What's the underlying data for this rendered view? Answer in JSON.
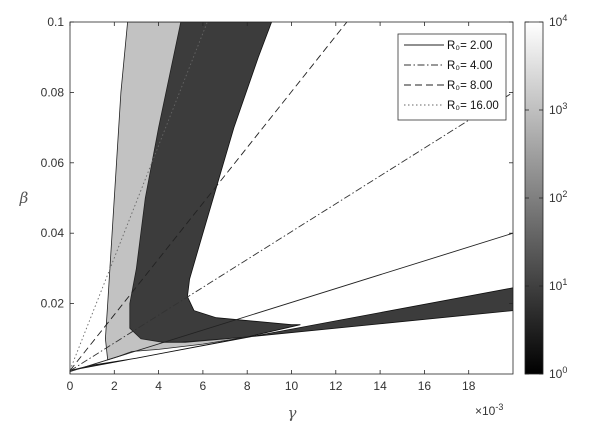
{
  "chart_data": {
    "type": "area",
    "xlabel": "γ",
    "ylabel": "β",
    "x_exponent_label": "×10",
    "x_exponent_power": "-3",
    "xlim": [
      0,
      0.02
    ],
    "ylim": [
      0,
      0.1
    ],
    "x_ticks": [
      0,
      0.002,
      0.004,
      0.006,
      0.008,
      0.01,
      0.012,
      0.014,
      0.016,
      0.018
    ],
    "x_tick_labels": [
      "0",
      "2",
      "4",
      "6",
      "8",
      "10",
      "12",
      "14",
      "16",
      "18"
    ],
    "y_ticks": [
      0.02,
      0.04,
      0.06,
      0.08,
      0.1
    ],
    "y_tick_labels": [
      "0.02",
      "0.04",
      "0.06",
      "0.08",
      "0.1"
    ],
    "grid": false,
    "legend_position": "top-right",
    "lines": [
      {
        "label": "R₀= 2.00",
        "R0": 2.0,
        "style": "solid",
        "color": "#222222",
        "x": [
          0,
          0.02
        ],
        "y": [
          0.00068,
          0.04
        ]
      },
      {
        "label": "R₀= 4.00",
        "R0": 4.0,
        "style": "dashdot",
        "color": "#333333",
        "x": [
          0,
          0.02
        ],
        "y": [
          0.0009,
          0.08
        ]
      },
      {
        "label": "R₀= 8.00",
        "R0": 8.0,
        "style": "dashed",
        "color": "#222222",
        "x": [
          0,
          0.0125
        ],
        "y": [
          0.001,
          0.1
        ]
      },
      {
        "label": "R₀= 16.00",
        "R0": 16.0,
        "style": "dotted",
        "color": "#666666",
        "x": [
          0,
          0.0062
        ],
        "y": [
          0.0011,
          0.1
        ]
      }
    ],
    "regions": [
      {
        "fill": "#3c3c3c",
        "outline": "#111111",
        "boundary": [
          [
            0.0,
            0.001
          ],
          [
            0.02,
            0.0245
          ],
          [
            0.02,
            0.018
          ],
          [
            0.008,
            0.0105
          ],
          [
            0.003,
            0.0045
          ],
          [
            0.001,
            0.0025
          ],
          [
            0.0,
            0.001
          ]
        ]
      },
      {
        "fill": "#3c3c3c",
        "outline": "#111111",
        "boundary": [
          [
            0.0045,
            0.1
          ],
          [
            0.0091,
            0.1
          ],
          [
            0.0085,
            0.09
          ],
          [
            0.0074,
            0.07
          ],
          [
            0.006,
            0.04
          ],
          [
            0.0054,
            0.027
          ],
          [
            0.0053,
            0.022
          ],
          [
            0.0056,
            0.018
          ],
          [
            0.0066,
            0.016
          ],
          [
            0.01,
            0.014
          ],
          [
            0.0104,
            0.014
          ],
          [
            0.008,
            0.0105
          ],
          [
            0.005,
            0.009
          ],
          [
            0.004,
            0.009
          ],
          [
            0.003,
            0.01
          ],
          [
            0.0025,
            0.013
          ],
          [
            0.0025,
            0.02
          ],
          [
            0.0028,
            0.03
          ],
          [
            0.0031,
            0.05
          ],
          [
            0.0036,
            0.07
          ],
          [
            0.004,
            0.085
          ],
          [
            0.0045,
            0.1
          ]
        ]
      },
      {
        "fill": "#c2c2c2",
        "outline": "#222222",
        "boundary": [
          [
            0.0026,
            0.1
          ],
          [
            0.005,
            0.1
          ],
          [
            0.0045,
            0.085
          ],
          [
            0.004,
            0.07
          ],
          [
            0.0034,
            0.05
          ],
          [
            0.003,
            0.03
          ],
          [
            0.0027,
            0.02
          ],
          [
            0.0027,
            0.013
          ],
          [
            0.0032,
            0.01
          ],
          [
            0.0042,
            0.009
          ],
          [
            0.0052,
            0.009
          ],
          [
            0.008,
            0.0105
          ],
          [
            0.006,
            0.0085
          ],
          [
            0.004,
            0.007
          ],
          [
            0.0028,
            0.0064
          ],
          [
            0.0022,
            0.005
          ],
          [
            0.0017,
            0.004
          ],
          [
            0.0016,
            0.01
          ],
          [
            0.0017,
            0.02
          ],
          [
            0.0019,
            0.04
          ],
          [
            0.0021,
            0.06
          ],
          [
            0.0023,
            0.08
          ],
          [
            0.0026,
            0.1
          ]
        ]
      }
    ],
    "colorbar": {
      "scale": "log",
      "range": [
        1,
        10000
      ],
      "tick_values": [
        1,
        10,
        100,
        1000,
        10000
      ],
      "tick_base": "10",
      "tick_powers": [
        "0",
        "1",
        "2",
        "3",
        "4"
      ],
      "colormap": [
        "#000000",
        "#ffffff"
      ]
    }
  }
}
